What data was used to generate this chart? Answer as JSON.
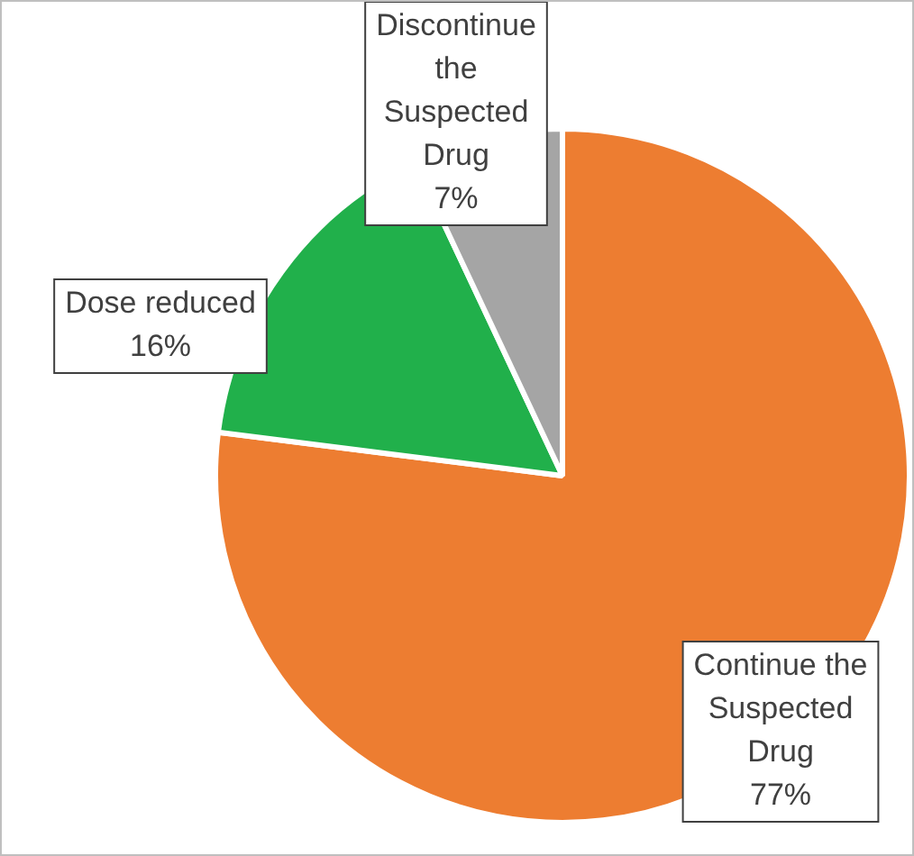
{
  "chart_data": {
    "type": "pie",
    "categories": [
      "Continue the Suspected Drug",
      "Dose reduced",
      "Discontinue the Suspected Drug"
    ],
    "values": [
      77,
      16,
      7
    ],
    "colors": [
      "#ed7d31",
      "#21b04b",
      "#a5a5a5"
    ],
    "value_labels": [
      "77%",
      "16%",
      "7%"
    ],
    "legend": false
  }
}
